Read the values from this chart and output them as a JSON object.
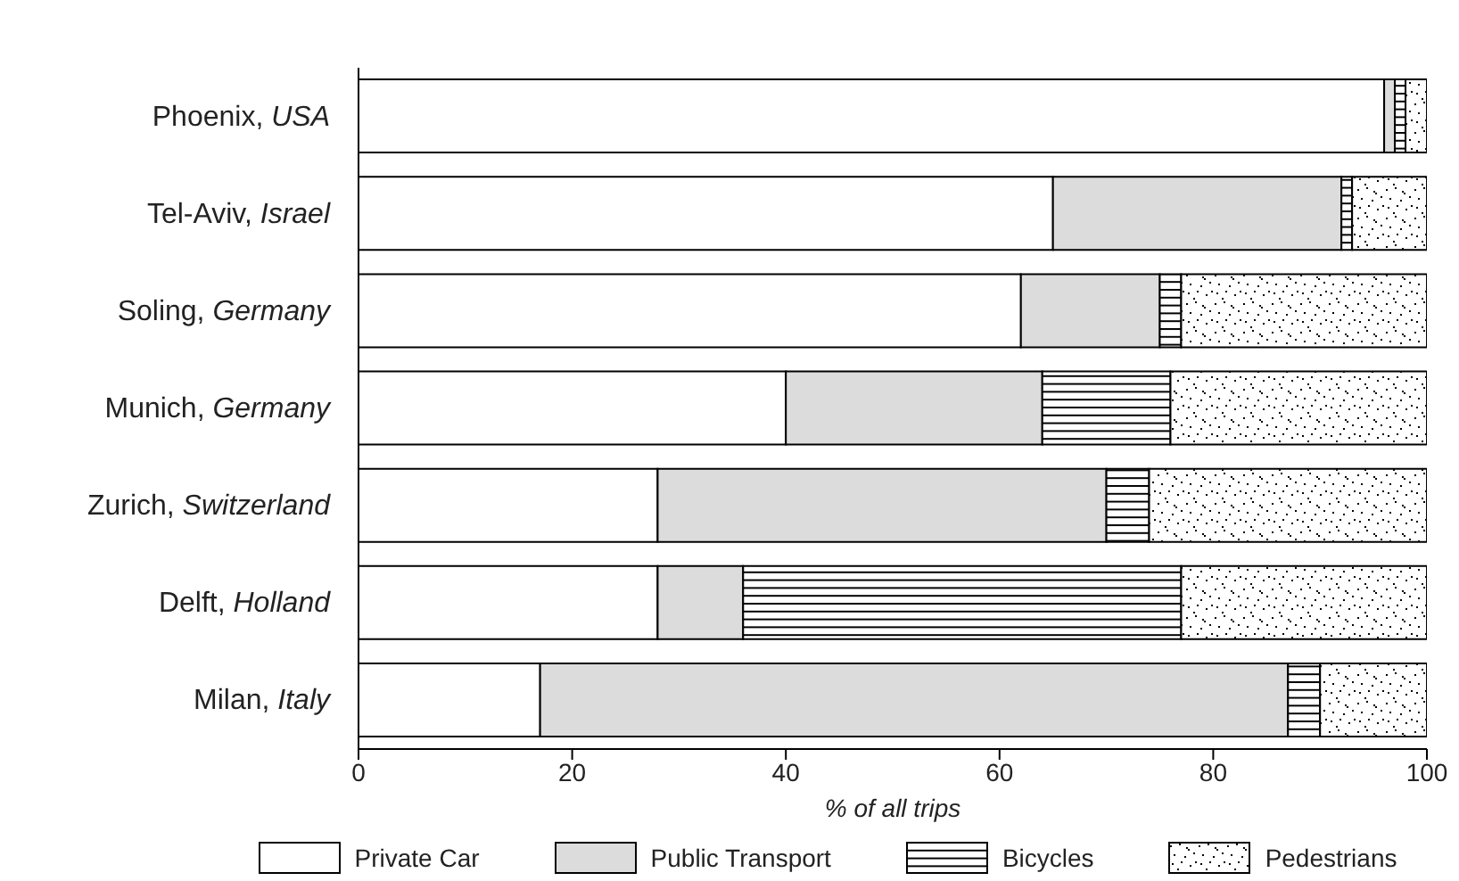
{
  "chart_data": {
    "type": "bar",
    "orientation": "horizontal",
    "stacked": true,
    "xlabel": "% of all trips",
    "categories": [
      "Phoenix, USA",
      "Tel-Aviv, Israel",
      "Soling, Germany",
      "Munich, Germany",
      "Zurich, Switzerland",
      "Delft, Holland",
      "Milan, Italy"
    ],
    "series": [
      {
        "name": "Private Car",
        "color": "#ffffff",
        "values": [
          96,
          65,
          62,
          40,
          28,
          28,
          17
        ]
      },
      {
        "name": "Public Transport",
        "color": "#dcdcdc",
        "values": [
          1,
          27,
          13,
          24,
          42,
          8,
          70
        ]
      },
      {
        "name": "Bicycles",
        "color": "#000000",
        "values": [
          1,
          1,
          2,
          12,
          4,
          41,
          3
        ]
      },
      {
        "name": "Pedestrians",
        "color": "#000000",
        "values": [
          2,
          7,
          23,
          24,
          26,
          23,
          10
        ]
      }
    ],
    "xlim": [
      0,
      100
    ],
    "xticks": [
      0,
      20,
      40,
      60,
      80,
      100
    ],
    "legend": "bottom"
  }
}
